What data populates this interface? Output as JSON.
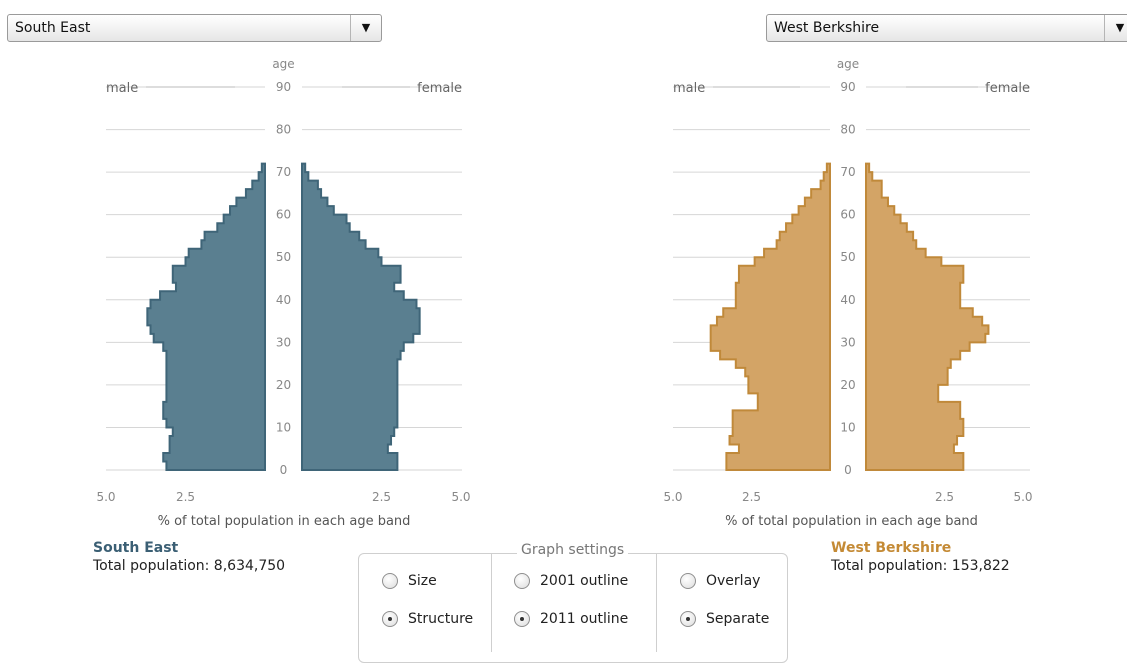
{
  "selectors": {
    "left": {
      "value": "South East"
    },
    "right": {
      "value": "West Berkshire"
    }
  },
  "colors": {
    "left_fill": "#5a7f90",
    "left_stroke": "#3f6578",
    "right_fill": "#d3a466",
    "right_stroke": "#c0893a"
  },
  "chart_data": [
    {
      "type": "bar",
      "orientation": "pyramid",
      "age_label": "age",
      "male_label": "male",
      "female_label": "female",
      "xlabel": "% of total population in each age band",
      "x_ticks": [
        "5.0",
        "2.5",
        "2.5",
        "5.0"
      ],
      "xlim": [
        0,
        5
      ],
      "age_ticks": [
        0,
        10,
        20,
        30,
        40,
        50,
        60,
        70,
        80,
        90
      ],
      "grid": true,
      "age_bands_years": 2,
      "male": [
        3.1,
        3.2,
        3.0,
        3.0,
        2.9,
        3.1,
        3.2,
        3.2,
        3.1,
        3.1,
        3.1,
        3.1,
        3.1,
        3.1,
        3.2,
        3.5,
        3.6,
        3.7,
        3.7,
        3.6,
        3.3,
        2.8,
        2.9,
        2.9,
        2.5,
        2.4,
        2.0,
        1.9,
        1.5,
        1.3,
        1.1,
        0.9,
        0.6,
        0.4,
        0.2,
        0.1
      ],
      "female": [
        3.0,
        3.0,
        2.7,
        2.8,
        2.9,
        3.0,
        3.0,
        3.0,
        3.0,
        3.0,
        3.0,
        3.0,
        3.0,
        3.1,
        3.2,
        3.5,
        3.7,
        3.7,
        3.7,
        3.6,
        3.2,
        2.9,
        3.1,
        3.1,
        2.5,
        2.4,
        2.0,
        1.8,
        1.5,
        1.4,
        1.0,
        0.8,
        0.6,
        0.5,
        0.2,
        0.1
      ]
    },
    {
      "type": "bar",
      "orientation": "pyramid",
      "age_label": "age",
      "male_label": "male",
      "female_label": "female",
      "xlabel": "% of total population in each age band",
      "x_ticks": [
        "5.0",
        "2.5",
        "2.5",
        "5.0"
      ],
      "xlim": [
        0,
        5
      ],
      "age_ticks": [
        0,
        10,
        20,
        30,
        40,
        50,
        60,
        70,
        80,
        90
      ],
      "grid": true,
      "age_bands_years": 2,
      "male": [
        3.3,
        3.3,
        2.9,
        3.2,
        3.1,
        3.1,
        3.1,
        2.3,
        2.3,
        2.6,
        2.6,
        2.7,
        3.0,
        3.5,
        3.8,
        3.8,
        3.8,
        3.6,
        3.4,
        3.0,
        3.0,
        3.0,
        2.9,
        2.9,
        2.4,
        2.1,
        1.7,
        1.6,
        1.4,
        1.2,
        1.0,
        0.8,
        0.6,
        0.3,
        0.2,
        0.1
      ],
      "female": [
        3.1,
        3.1,
        2.8,
        2.9,
        3.1,
        3.1,
        3.0,
        3.0,
        2.3,
        2.3,
        2.6,
        2.6,
        2.7,
        3.0,
        3.3,
        3.8,
        3.9,
        3.7,
        3.4,
        3.0,
        3.0,
        3.0,
        3.1,
        3.1,
        2.4,
        1.9,
        1.6,
        1.5,
        1.3,
        1.1,
        0.9,
        0.7,
        0.5,
        0.5,
        0.2,
        0.1
      ]
    }
  ],
  "info": {
    "left": {
      "name": "South East",
      "total": "Total population: 8,634,750"
    },
    "right": {
      "name": "West Berkshire",
      "total": "Total population: 153,822"
    }
  },
  "settings": {
    "legend": "Graph settings",
    "col1": {
      "opt1": "Size",
      "opt2": "Structure",
      "selected": 2
    },
    "col2": {
      "opt1": "2001 outline",
      "opt2": "2011 outline",
      "selected": 2
    },
    "col3": {
      "opt1": "Overlay",
      "opt2": "Separate",
      "selected": 2
    }
  }
}
